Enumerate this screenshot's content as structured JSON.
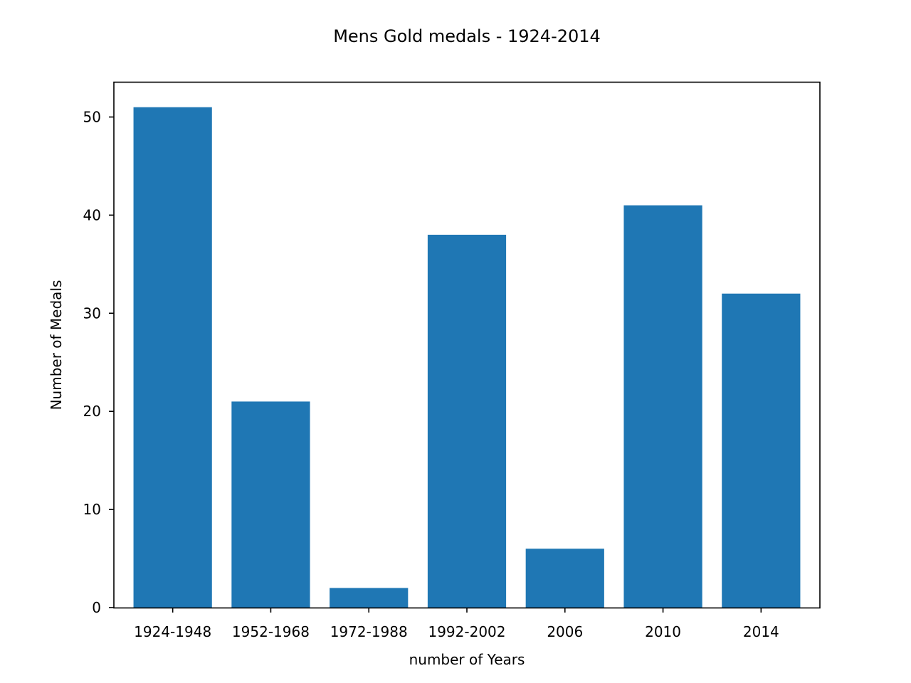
{
  "chart_data": {
    "type": "bar",
    "title": "Mens Gold medals - 1924-2014",
    "xlabel": "number of Years",
    "ylabel": "Number of Medals",
    "categories": [
      "1924-1948",
      "1952-1968",
      "1972-1988",
      "1992-2002",
      "2006",
      "2010",
      "2014"
    ],
    "values": [
      51,
      21,
      2,
      38,
      6,
      41,
      32
    ],
    "ylim": [
      0,
      53.55
    ],
    "yticks": [
      0,
      10,
      20,
      30,
      40,
      50
    ],
    "grid": false,
    "legend": "none",
    "bar_color": "#1f77b4"
  }
}
